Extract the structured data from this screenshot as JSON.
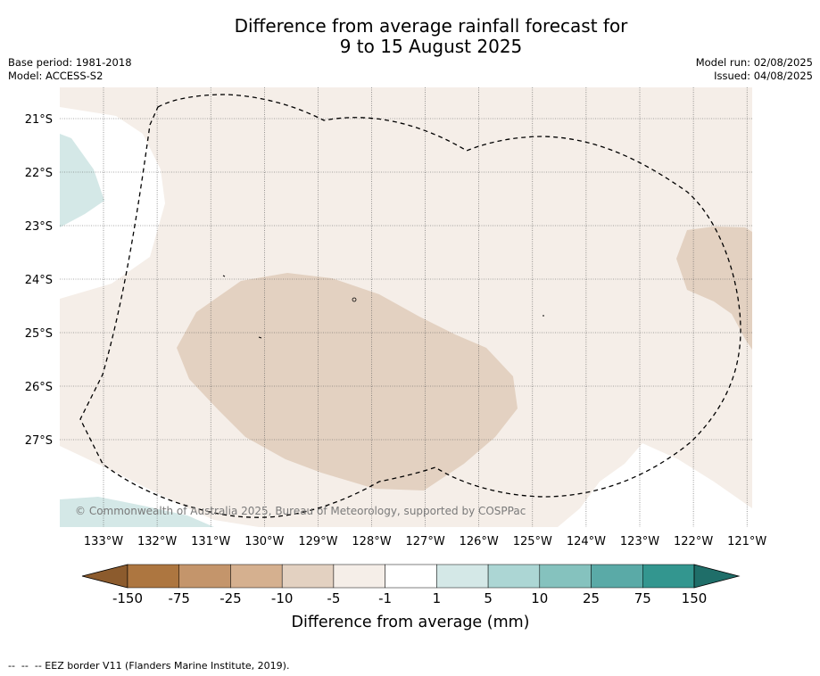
{
  "header": {
    "title_line1": "Difference from average rainfall forecast for",
    "title_line2": "9 to 15 August 2025",
    "base_period": "Base period: 1981-2018",
    "model": "Model: ACCESS-S2",
    "model_run": "Model run: 02/08/2025",
    "issued": "Issued: 04/08/2025"
  },
  "map": {
    "lat_labels": [
      "21°S",
      "22°S",
      "23°S",
      "24°S",
      "25°S",
      "26°S",
      "27°S"
    ],
    "lon_labels": [
      "133°W",
      "132°W",
      "131°W",
      "130°W",
      "129°W",
      "128°W",
      "127°W",
      "126°W",
      "125°W",
      "124°W",
      "123°W",
      "122°W",
      "121°W"
    ],
    "copyright": "© Commonwealth of Australia 2025, Bureau of Meteorology, supported by COSPPac",
    "colors": {
      "light_tan": "#f5eee8",
      "mid_tan": "#e3d1c1",
      "light_teal": "#d4e8e7"
    }
  },
  "colorbar": {
    "title": "Difference from average (mm)",
    "tick_labels": [
      "-150",
      "-75",
      "-25",
      "-10",
      "-5",
      "-1",
      "1",
      "5",
      "10",
      "25",
      "75",
      "150"
    ],
    "colors": [
      "#8c5b2d",
      "#ad7640",
      "#c4956b",
      "#d5b08f",
      "#e3d1c1",
      "#f5eee8",
      "#ffffff",
      "#d4e8e7",
      "#acd6d4",
      "#85c2be",
      "#5aaaa7",
      "#33968f",
      "#1f6e69"
    ]
  },
  "footnote": "--  --  -- EEZ border V11 (Flanders Marine Institute, 2019)."
}
